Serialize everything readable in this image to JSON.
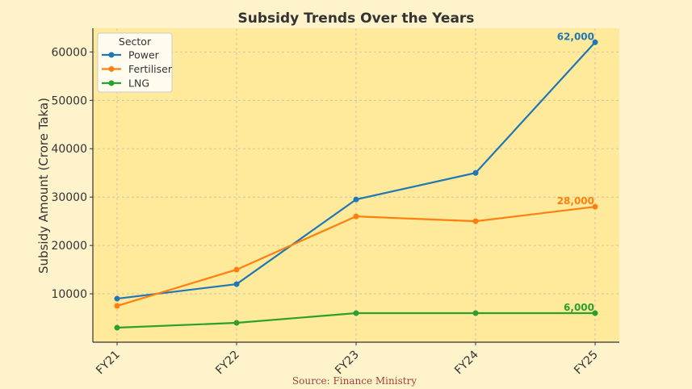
{
  "chart_data": {
    "type": "line",
    "title": "Subsidy Trends Over the Years",
    "xlabel": "",
    "ylabel": "Subsidy Amount (Crore Taka)",
    "categories": [
      "FY21",
      "FY22",
      "FY23",
      "FY24",
      "FY25"
    ],
    "ylim": [
      0,
      64900
    ],
    "yticks": [
      10000,
      20000,
      30000,
      40000,
      50000,
      60000
    ],
    "grid": true,
    "legend": {
      "title": "Sector",
      "placement": "top-left"
    },
    "series": [
      {
        "name": "Power",
        "color": "#1f77b4",
        "values": [
          9000,
          12000,
          29500,
          35000,
          62000
        ],
        "end_label": "62,000"
      },
      {
        "name": "Fertiliser",
        "color": "#ff7f0e",
        "values": [
          7500,
          15000,
          26000,
          25000,
          28000
        ],
        "end_label": "28,000"
      },
      {
        "name": "LNG",
        "color": "#2ca02c",
        "values": [
          3000,
          4000,
          6000,
          6000,
          6000
        ],
        "end_label": "6,000"
      }
    ],
    "annotation": "Source: Finance Ministry"
  },
  "colors": {
    "background": "#fff3cc",
    "plot_background": "#ffe99a"
  }
}
